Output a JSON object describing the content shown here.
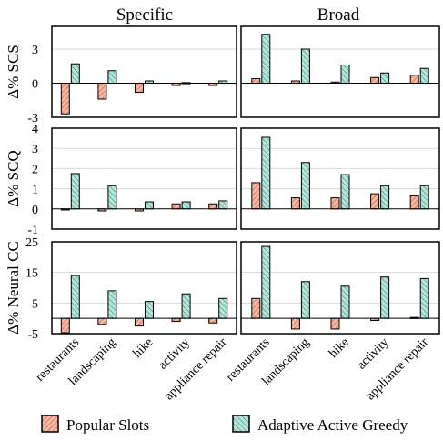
{
  "colors": {
    "popular_fill": "#f4b9a3",
    "popular_stroke": "#c0553a",
    "adaptive_fill": "#b9e4da",
    "adaptive_stroke": "#2f8f7a",
    "grid": "#d9d9d9"
  },
  "legend": {
    "popular": "Popular Slots",
    "adaptive": "Adaptive Active Greedy"
  },
  "chart_data": {
    "type": "bar",
    "layout": "3x2 grid of grouped bar panels",
    "column_titles": [
      "Specific",
      "Broad"
    ],
    "categories": [
      "restaurants",
      "landscaping",
      "hike",
      "activity",
      "appliance repair"
    ],
    "series_names": [
      "Popular Slots",
      "Adaptive Active Greedy"
    ],
    "legend_position": "bottom",
    "grid": "horizontal",
    "rows": [
      {
        "ylabel": "Δ% SCS",
        "ylim": [
          -3,
          5
        ],
        "yticks": [
          "-3",
          "0",
          "3"
        ],
        "ytick_values": [
          -3,
          0,
          3
        ],
        "grid_values": [
          0,
          3
        ],
        "panels": [
          {
            "column": "Specific",
            "series": [
              {
                "name": "Popular Slots",
                "values": [
                  -2.7,
                  -1.4,
                  -0.8,
                  -0.2,
                  -0.2
                ]
              },
              {
                "name": "Adaptive Active Greedy",
                "values": [
                  1.7,
                  1.1,
                  0.2,
                  0.05,
                  0.2
                ]
              }
            ]
          },
          {
            "column": "Broad",
            "series": [
              {
                "name": "Popular Slots",
                "values": [
                  0.4,
                  0.2,
                  0.1,
                  0.5,
                  0.7
                ]
              },
              {
                "name": "Adaptive Active Greedy",
                "values": [
                  4.3,
                  3.0,
                  1.6,
                  0.9,
                  1.3
                ]
              }
            ]
          }
        ]
      },
      {
        "ylabel": "Δ% SCQ",
        "ylim": [
          -1,
          4
        ],
        "yticks": [
          "-1",
          "0",
          "1",
          "2",
          "3",
          "4"
        ],
        "ytick_values": [
          -1,
          0,
          1,
          2,
          3,
          4
        ],
        "grid_values": [
          1,
          2,
          3
        ],
        "panels": [
          {
            "column": "Specific",
            "series": [
              {
                "name": "Popular Slots",
                "values": [
                  -0.05,
                  -0.1,
                  -0.1,
                  0.25,
                  0.25
                ]
              },
              {
                "name": "Adaptive Active Greedy",
                "values": [
                  1.75,
                  1.15,
                  0.35,
                  0.35,
                  0.4
                ]
              }
            ]
          },
          {
            "column": "Broad",
            "series": [
              {
                "name": "Popular Slots",
                "values": [
                  1.3,
                  0.55,
                  0.55,
                  0.75,
                  0.65
                ]
              },
              {
                "name": "Adaptive Active Greedy",
                "values": [
                  3.55,
                  2.3,
                  1.7,
                  1.15,
                  1.15
                ]
              }
            ]
          }
        ]
      },
      {
        "ylabel": "Δ% Neural CC",
        "ylim": [
          -5,
          25
        ],
        "yticks": [
          "-5",
          "5",
          "15",
          "25"
        ],
        "ytick_values": [
          -5,
          5,
          15,
          25
        ],
        "grid_values": [
          5,
          15
        ],
        "panels": [
          {
            "column": "Specific",
            "series": [
              {
                "name": "Popular Slots",
                "values": [
                  -4.7,
                  -2.0,
                  -2.5,
                  -1.0,
                  -1.5
                ]
              },
              {
                "name": "Adaptive Active Greedy",
                "values": [
                  14.0,
                  9.0,
                  5.5,
                  8.0,
                  6.5
                ]
              }
            ]
          },
          {
            "column": "Broad",
            "series": [
              {
                "name": "Popular Slots",
                "values": [
                  6.5,
                  -3.5,
                  -3.5,
                  -0.7,
                  0.3
                ]
              },
              {
                "name": "Adaptive Active Greedy",
                "values": [
                  23.5,
                  12.0,
                  10.5,
                  13.5,
                  13.0
                ]
              }
            ]
          }
        ]
      }
    ]
  }
}
